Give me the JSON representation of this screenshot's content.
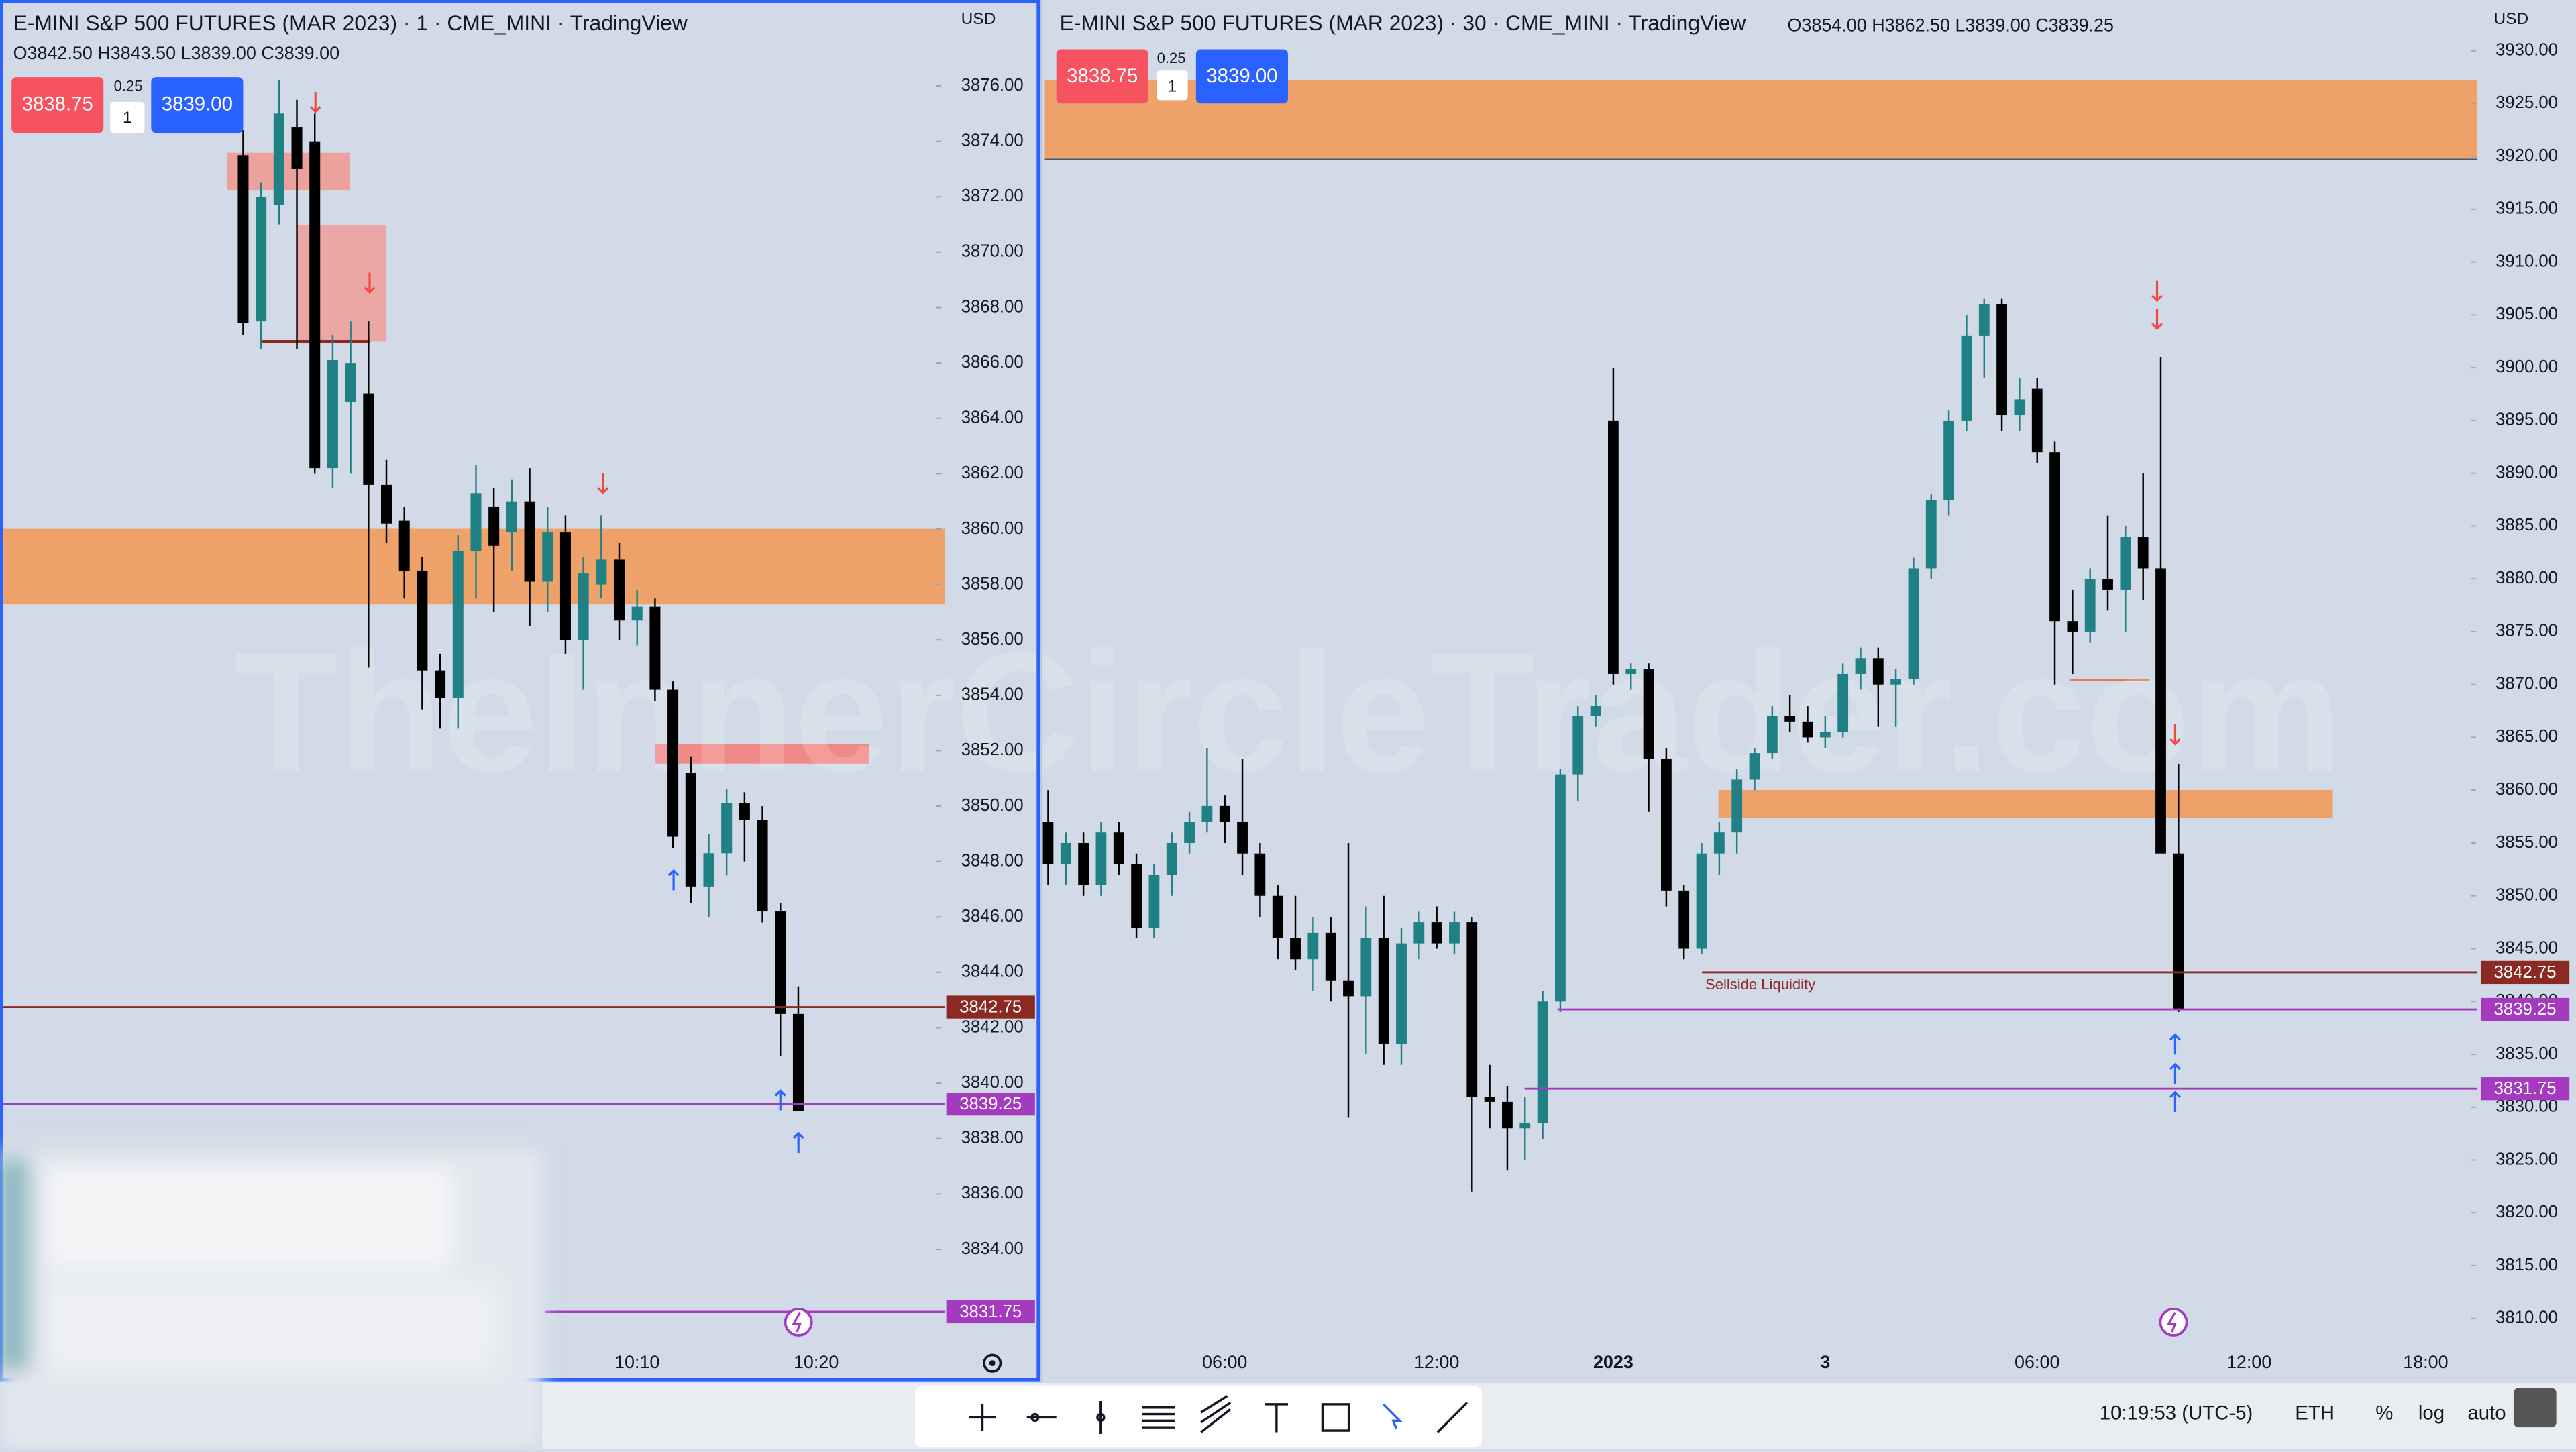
{
  "chart_data": [
    {
      "type": "candlestick",
      "title": "E-MINI S&P 500 FUTURES (MAR 2023) · 1 · CME_MINI · TradingView",
      "currency": "USD",
      "ohlc_header": "O3842.50 H3843.50 L3839.00 C3839.00",
      "order": {
        "sell": "3838.75",
        "spread": 0.25,
        "quantity": 1,
        "buy": "3839.00"
      },
      "categories": [
        null,
        null,
        null,
        null,
        null,
        null,
        null,
        null,
        null,
        null,
        null,
        null,
        null,
        null,
        null,
        null,
        null,
        null,
        null,
        null,
        null,
        null,
        "10:10",
        null,
        null,
        null,
        null,
        null,
        null,
        null,
        null,
        null,
        "10:20"
      ],
      "open": [
        3873.5,
        3867.5,
        3871.7,
        3874.5,
        3874.0,
        3862.2,
        3864.6,
        3864.9,
        3861.6,
        3860.3,
        3858.5,
        3854.9,
        3853.9,
        3859.2,
        3860.8,
        3859.9,
        3861.0,
        3858.1,
        3859.9,
        3856.0,
        3858.0,
        3858.9,
        3856.7,
        3857.2,
        3854.2,
        3851.2,
        3847.1,
        3848.3,
        3850.1,
        3849.5,
        3846.2,
        3842.5,
        null
      ],
      "high": [
        3874.4,
        3872.5,
        3876.2,
        3875.5,
        3875.0,
        3867.0,
        3867.5,
        3867.5,
        3862.5,
        3860.8,
        3859.0,
        3855.5,
        3859.8,
        3862.3,
        3861.5,
        3861.8,
        3862.2,
        3860.8,
        3860.5,
        3859.0,
        3860.5,
        3859.5,
        3857.8,
        3857.5,
        3854.5,
        3851.8,
        3849.0,
        3850.6,
        3850.5,
        3850.0,
        3846.5,
        3843.5,
        null
      ],
      "low": [
        3867.0,
        3866.5,
        3871.0,
        3866.5,
        3862.0,
        3861.5,
        3862.0,
        3855.0,
        3859.5,
        3857.5,
        3853.5,
        3852.8,
        3852.8,
        3857.5,
        3857.0,
        3858.5,
        3856.5,
        3857.0,
        3855.5,
        3854.2,
        3857.5,
        3856.0,
        3855.8,
        3853.8,
        3848.5,
        3846.5,
        3846.0,
        3847.5,
        3848.0,
        3845.8,
        3841.0,
        3839.0,
        null
      ],
      "close": [
        3867.45,
        3872.0,
        3875.0,
        3873.0,
        3862.2,
        3866.1,
        3866.0,
        3861.6,
        3860.2,
        3858.5,
        3854.9,
        3853.9,
        3859.2,
        3861.3,
        3859.4,
        3861.0,
        3858.1,
        3859.9,
        3856.0,
        3858.4,
        3858.9,
        3856.7,
        3857.2,
        3854.2,
        3848.9,
        3847.1,
        3848.3,
        3850.1,
        3849.5,
        3846.2,
        3842.5,
        3839.0,
        null
      ],
      "up_color": "#1f8184",
      "down_color": "#000000",
      "ylim": [
        3829.3,
        3879.1
      ],
      "yticks": [
        {
          "value": 3834,
          "label": "3834.00"
        },
        {
          "value": 3836,
          "label": "3836.00"
        },
        {
          "value": 3838,
          "label": "3838.00"
        },
        {
          "value": 3840,
          "label": "3840.00"
        },
        {
          "value": 3842,
          "label": "3842.00"
        },
        {
          "value": 3844,
          "label": "3844.00"
        },
        {
          "value": 3846,
          "label": "3846.00"
        },
        {
          "value": 3848,
          "label": "3848.00"
        },
        {
          "value": 3850,
          "label": "3850.00"
        },
        {
          "value": 3852,
          "label": "3852.00"
        },
        {
          "value": 3854,
          "label": "3854.00"
        },
        {
          "value": 3856,
          "label": "3856.00"
        },
        {
          "value": 3858,
          "label": "3858.00"
        },
        {
          "value": 3860,
          "label": "3860.00"
        },
        {
          "value": 3862,
          "label": "3862.00"
        },
        {
          "value": 3864,
          "label": "3864.00"
        },
        {
          "value": 3866,
          "label": "3866.00"
        },
        {
          "value": 3868,
          "label": "3868.00"
        },
        {
          "value": 3870,
          "label": "3870.00"
        },
        {
          "value": 3872,
          "label": "3872.00"
        },
        {
          "value": 3874,
          "label": "3874.00"
        },
        {
          "value": 3876,
          "label": "3876.00"
        }
      ],
      "price_lines": [
        {
          "value": 3842.75,
          "color": "#8b2a22"
        },
        {
          "value": 3839.25,
          "color": "#a43bbf"
        },
        {
          "value": 3831.75,
          "color": "#a43bbf"
        }
      ]
    },
    {
      "type": "candlestick",
      "title": "E-MINI S&P 500 FUTURES (MAR 2023) · 30 · CME_MINI · TradingView",
      "currency": "USD",
      "ohlc_header": "O3854.00 H3862.50 L3839.00 C3839.25",
      "order": {
        "sell": "3838.75",
        "spread": 0.25,
        "quantity": 1,
        "buy": "3839.00"
      },
      "categories": [
        null,
        null,
        null,
        null,
        null,
        null,
        null,
        null,
        null,
        null,
        "06:00",
        null,
        null,
        null,
        null,
        null,
        null,
        null,
        null,
        null,
        null,
        null,
        "12:00",
        null,
        null,
        null,
        null,
        null,
        null,
        null,
        null,
        null,
        "2023",
        null,
        null,
        null,
        null,
        null,
        null,
        null,
        null,
        null,
        null,
        null,
        "3",
        null,
        null,
        null,
        null,
        null,
        null,
        null,
        null,
        null,
        null,
        null,
        "06:00",
        null,
        null,
        null,
        null,
        null,
        null,
        null,
        null,
        null,
        null,
        null,
        "12:00",
        null,
        null,
        null,
        null,
        null,
        null,
        null,
        null,
        null,
        "18:00"
      ],
      "open": [
        3857,
        3853,
        3855,
        3851,
        3856,
        3853,
        3847,
        3852,
        3855,
        3857,
        3858.5,
        3857,
        3854,
        3850,
        3846,
        3844,
        3846.5,
        3842,
        3840.5,
        3846,
        3836,
        3845.5,
        3847.5,
        3845.5,
        3847.5,
        3831,
        3830.5,
        3828,
        3828.5,
        3840,
        3861.5,
        3867,
        3895,
        3871,
        3871.5,
        3863,
        3850.5,
        3845,
        3854,
        3856,
        3861,
        3863.5,
        3867,
        3866.5,
        3865,
        3865.5,
        3871,
        3872.5,
        3870,
        3870.5,
        3881,
        3887.5,
        3895,
        3903,
        3906,
        3895.5,
        3898,
        3892,
        3876,
        3875,
        3880,
        3879,
        3884,
        3881,
        3854,
        null,
        null,
        null,
        null,
        null,
        null,
        null,
        null,
        null,
        null,
        null,
        null,
        null,
        null
      ],
      "high": [
        3860,
        3856,
        3856,
        3857,
        3857,
        3854,
        3853,
        3856,
        3858,
        3864,
        3859.5,
        3863,
        3855,
        3851,
        3850,
        3848,
        3848,
        3855,
        3849,
        3850,
        3847,
        3848.5,
        3849,
        3848.5,
        3848,
        3834,
        3832,
        3831,
        3841,
        3862,
        3868,
        3869,
        3900,
        3872,
        3872,
        3864,
        3851,
        3855,
        3857,
        3862,
        3864,
        3868,
        3869,
        3868,
        3867,
        3872,
        3873.5,
        3873.5,
        3871.5,
        3882,
        3888,
        3896,
        3905,
        3906.5,
        3906.5,
        3899,
        3899,
        3893,
        3879,
        3881,
        3886,
        3885,
        3890,
        3901,
        3862.5,
        null,
        null,
        null,
        null,
        null,
        null,
        null,
        null,
        null,
        null,
        null,
        null,
        null,
        null
      ],
      "low": [
        3851,
        3851,
        3850,
        3850,
        3852,
        3846,
        3846,
        3850,
        3854,
        3856,
        3855,
        3852,
        3848,
        3844,
        3843,
        3841,
        3840,
        3829,
        3835,
        3834,
        3834,
        3844,
        3845,
        3844.5,
        3822,
        3828,
        3824,
        3825,
        3827,
        3839,
        3859,
        3866,
        3870,
        3869.5,
        3858,
        3849,
        3844,
        3844.5,
        3852,
        3854,
        3860,
        3863,
        3865.5,
        3864.5,
        3864,
        3865,
        3869.5,
        3866,
        3866,
        3870,
        3880,
        3886,
        3894,
        3899,
        3894,
        3894,
        3891,
        3870,
        3871,
        3874,
        3877,
        3875,
        3878,
        3855,
        3839,
        null,
        null,
        null,
        null,
        null,
        null,
        null,
        null,
        null,
        null,
        null,
        null,
        null,
        null
      ],
      "close": [
        3853,
        3855,
        3851,
        3856,
        3853,
        3847,
        3852,
        3855,
        3857,
        3858.5,
        3857,
        3854,
        3850,
        3846,
        3844,
        3846.5,
        3842,
        3840.5,
        3846,
        3836,
        3845.5,
        3847.5,
        3845.5,
        3847.5,
        3831,
        3830.5,
        3828,
        3828.5,
        3840,
        3861.5,
        3867,
        3868,
        3871,
        3871.5,
        3863,
        3850.5,
        3845,
        3854,
        3856,
        3861,
        3863.5,
        3867,
        3866.5,
        3865,
        3865.5,
        3871,
        3872.5,
        3870,
        3870.5,
        3881,
        3887.5,
        3895,
        3903,
        3906,
        3895.5,
        3897,
        3892,
        3876,
        3875,
        3880,
        3879,
        3884,
        3881,
        3854,
        3839.25,
        null,
        null,
        null,
        null,
        null,
        null,
        null,
        null,
        null,
        null,
        null,
        null,
        null,
        null
      ],
      "up_color": "#1f8184",
      "down_color": "#000000",
      "ylim": [
        3804.2,
        3934.8
      ],
      "yticks": [
        {
          "value": 3810,
          "label": "3810.00"
        },
        {
          "value": 3815,
          "label": "3815.00"
        },
        {
          "value": 3820,
          "label": "3820.00"
        },
        {
          "value": 3825,
          "label": "3825.00"
        },
        {
          "value": 3830,
          "label": "3830.00"
        },
        {
          "value": 3835,
          "label": "3835.00"
        },
        {
          "value": 3840,
          "label": "3840.00"
        },
        {
          "value": 3845,
          "label": "3845.00"
        },
        {
          "value": 3850,
          "label": "3850.00"
        },
        {
          "value": 3855,
          "label": "3855.00"
        },
        {
          "value": 3860,
          "label": "3860.00"
        },
        {
          "value": 3865,
          "label": "3865.00"
        },
        {
          "value": 3870,
          "label": "3870.00"
        },
        {
          "value": 3875,
          "label": "3875.00"
        },
        {
          "value": 3880,
          "label": "3880.00"
        },
        {
          "value": 3885,
          "label": "3885.00"
        },
        {
          "value": 3890,
          "label": "3890.00"
        },
        {
          "value": 3895,
          "label": "3895.00"
        },
        {
          "value": 3900,
          "label": "3900.00"
        },
        {
          "value": 3905,
          "label": "3905.00"
        },
        {
          "value": 3910,
          "label": "3910.00"
        },
        {
          "value": 3915,
          "label": "3915.00"
        },
        {
          "value": 3920,
          "label": "3920.00"
        },
        {
          "value": 3925,
          "label": "3925.00"
        },
        {
          "value": 3930,
          "label": "3930.00"
        }
      ],
      "price_lines": [
        {
          "value": 3842.75,
          "color": "#8b2a22"
        },
        {
          "value": 3839.25,
          "color": "#a43bbf"
        },
        {
          "value": 3831.75,
          "color": "#a43bbf"
        }
      ],
      "annotation": "Sellside Liquidity"
    }
  ],
  "watermark": "TheInnerCircleTrader.com",
  "status_bar": {
    "time": "10:19:53 (UTC-5)",
    "session": "ETH",
    "percent": "%",
    "log": "log",
    "auto": "auto"
  }
}
